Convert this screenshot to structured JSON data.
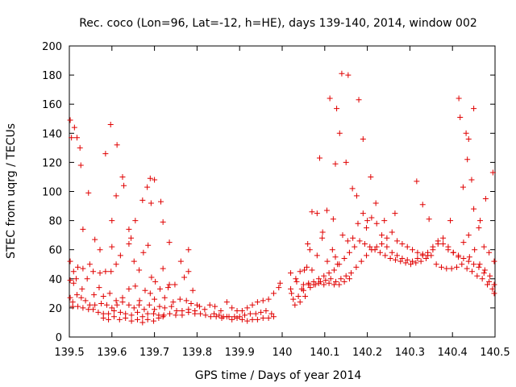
{
  "chart_data": {
    "type": "scatter",
    "title": "Rec. coco (Lon=96, Lat=-12, h=HE), days 139-140, 2014, window 002",
    "xlabel": "GPS time / Days of year 2014",
    "ylabel": "STEC from uqrg / TECUs",
    "xlim": [
      139.5,
      140.5
    ],
    "ylim": [
      0,
      200
    ],
    "x_ticks": [
      139.5,
      139.6,
      139.7,
      139.8,
      139.9,
      140.0,
      140.1,
      140.2,
      140.3,
      140.4,
      140.5
    ],
    "x_tick_labels": [
      "139.5",
      "139.6",
      "139.7",
      "139.8",
      "139.9",
      "140",
      "140.1",
      "140.2",
      "140.3",
      "140.4",
      "140.5"
    ],
    "y_ticks": [
      0,
      20,
      40,
      60,
      80,
      100,
      120,
      140,
      160,
      180,
      200
    ],
    "y_tick_labels": [
      "0",
      "20",
      "40",
      "60",
      "80",
      "100",
      "120",
      "140",
      "160",
      "180",
      "200"
    ],
    "grid": false,
    "marker": "plus",
    "color": "#e00000",
    "points": [
      [
        139.502,
        149
      ],
      [
        139.505,
        137
      ],
      [
        139.512,
        144
      ],
      [
        139.518,
        137
      ],
      [
        139.525,
        130
      ],
      [
        139.527,
        118
      ],
      [
        139.532,
        74
      ],
      [
        139.545,
        99
      ],
      [
        139.56,
        67
      ],
      [
        139.572,
        60
      ],
      [
        139.585,
        126
      ],
      [
        139.597,
        146
      ],
      [
        139.6,
        80
      ],
      [
        139.61,
        97
      ],
      [
        139.612,
        132
      ],
      [
        139.625,
        110
      ],
      [
        139.628,
        104
      ],
      [
        139.64,
        74
      ],
      [
        139.645,
        68
      ],
      [
        139.655,
        80
      ],
      [
        139.672,
        94
      ],
      [
        139.683,
        103
      ],
      [
        139.69,
        109
      ],
      [
        139.692,
        92
      ],
      [
        139.7,
        108
      ],
      [
        139.715,
        93
      ],
      [
        139.72,
        79
      ],
      [
        139.735,
        65
      ],
      [
        139.78,
        60
      ],
      [
        139.6,
        62
      ],
      [
        139.502,
        52
      ],
      [
        139.51,
        45
      ],
      [
        139.52,
        48
      ],
      [
        139.532,
        47
      ],
      [
        139.548,
        50
      ],
      [
        139.556,
        45
      ],
      [
        139.572,
        44
      ],
      [
        139.585,
        45
      ],
      [
        139.598,
        45
      ],
      [
        139.61,
        50
      ],
      [
        139.62,
        56
      ],
      [
        139.64,
        64
      ],
      [
        139.652,
        52
      ],
      [
        139.664,
        46
      ],
      [
        139.674,
        58
      ],
      [
        139.685,
        63
      ],
      [
        139.693,
        41
      ],
      [
        139.702,
        38
      ],
      [
        139.72,
        47
      ],
      [
        139.735,
        36
      ],
      [
        139.748,
        36
      ],
      [
        139.762,
        52
      ],
      [
        139.77,
        41
      ],
      [
        139.78,
        45
      ],
      [
        139.79,
        32
      ],
      [
        139.502,
        39
      ],
      [
        139.51,
        37
      ],
      [
        139.516,
        40
      ],
      [
        139.53,
        33
      ],
      [
        139.542,
        40
      ],
      [
        139.558,
        29
      ],
      [
        139.57,
        34
      ],
      [
        139.58,
        28
      ],
      [
        139.595,
        30
      ],
      [
        139.61,
        25
      ],
      [
        139.625,
        27
      ],
      [
        139.64,
        33
      ],
      [
        139.655,
        35
      ],
      [
        139.665,
        25
      ],
      [
        139.678,
        32
      ],
      [
        139.69,
        30
      ],
      [
        139.7,
        26
      ],
      [
        139.713,
        33
      ],
      [
        139.724,
        27
      ],
      [
        139.732,
        34
      ],
      [
        139.744,
        24
      ],
      [
        139.76,
        26
      ],
      [
        139.775,
        25
      ],
      [
        139.786,
        23
      ],
      [
        139.8,
        22
      ],
      [
        139.502,
        27
      ],
      [
        139.508,
        24
      ],
      [
        139.518,
        29
      ],
      [
        139.528,
        27
      ],
      [
        139.538,
        25
      ],
      [
        139.548,
        22
      ],
      [
        139.56,
        22
      ],
      [
        139.575,
        23
      ],
      [
        139.588,
        22
      ],
      [
        139.6,
        20
      ],
      [
        139.612,
        22
      ],
      [
        139.625,
        24
      ],
      [
        139.64,
        22
      ],
      [
        139.652,
        20
      ],
      [
        139.664,
        22
      ],
      [
        139.676,
        19
      ],
      [
        139.688,
        22
      ],
      [
        139.7,
        19
      ],
      [
        139.712,
        21
      ],
      [
        139.724,
        20
      ],
      [
        139.74,
        21
      ],
      [
        139.752,
        18
      ],
      [
        139.765,
        18
      ],
      [
        139.78,
        19
      ],
      [
        139.795,
        18
      ],
      [
        139.508,
        21
      ],
      [
        139.52,
        21
      ],
      [
        139.532,
        20
      ],
      [
        139.545,
        19
      ],
      [
        139.556,
        19
      ],
      [
        139.568,
        17
      ],
      [
        139.58,
        16
      ],
      [
        139.592,
        16
      ],
      [
        139.605,
        18
      ],
      [
        139.62,
        17
      ],
      [
        139.632,
        16
      ],
      [
        139.646,
        15
      ],
      [
        139.66,
        17
      ],
      [
        139.672,
        14
      ],
      [
        139.684,
        16
      ],
      [
        139.698,
        16
      ],
      [
        139.71,
        15
      ],
      [
        139.722,
        15
      ],
      [
        139.736,
        16
      ],
      [
        139.75,
        15
      ],
      [
        139.765,
        15
      ],
      [
        139.78,
        17
      ],
      [
        139.795,
        16
      ],
      [
        139.58,
        13
      ],
      [
        139.592,
        12
      ],
      [
        139.605,
        14
      ],
      [
        139.618,
        12
      ],
      [
        139.632,
        13
      ],
      [
        139.646,
        11
      ],
      [
        139.66,
        12
      ],
      [
        139.672,
        10
      ],
      [
        139.684,
        12
      ],
      [
        139.698,
        11
      ],
      [
        139.71,
        13
      ],
      [
        139.72,
        14
      ],
      [
        139.806,
        21
      ],
      [
        139.818,
        19
      ],
      [
        139.83,
        22
      ],
      [
        139.842,
        21
      ],
      [
        139.856,
        18
      ],
      [
        139.87,
        24
      ],
      [
        139.84,
        16
      ],
      [
        139.852,
        15
      ],
      [
        139.862,
        14
      ],
      [
        139.875,
        14
      ],
      [
        139.888,
        14
      ],
      [
        139.9,
        14
      ],
      [
        139.912,
        15
      ],
      [
        139.925,
        16
      ],
      [
        139.938,
        16
      ],
      [
        139.95,
        17
      ],
      [
        139.962,
        18
      ],
      [
        139.975,
        16
      ],
      [
        139.808,
        16
      ],
      [
        139.82,
        15
      ],
      [
        139.832,
        14
      ],
      [
        139.845,
        14
      ],
      [
        139.858,
        13
      ],
      [
        139.87,
        14
      ],
      [
        139.882,
        12
      ],
      [
        139.894,
        13
      ],
      [
        139.906,
        12
      ],
      [
        139.918,
        11
      ],
      [
        139.93,
        12
      ],
      [
        139.942,
        12
      ],
      [
        139.955,
        13
      ],
      [
        139.968,
        13
      ],
      [
        139.98,
        14
      ],
      [
        139.882,
        20
      ],
      [
        139.894,
        18
      ],
      [
        139.906,
        18
      ],
      [
        139.918,
        20
      ],
      [
        139.93,
        22
      ],
      [
        139.942,
        24
      ],
      [
        139.955,
        25
      ],
      [
        139.968,
        26
      ],
      [
        139.98,
        30
      ],
      [
        139.992,
        34
      ],
      [
        139.995,
        37
      ],
      [
        140.02,
        33
      ],
      [
        140.02,
        44
      ],
      [
        140.032,
        40
      ],
      [
        140.042,
        45
      ],
      [
        140.052,
        46
      ],
      [
        140.06,
        64
      ],
      [
        140.065,
        60
      ],
      [
        140.07,
        86
      ],
      [
        140.082,
        85
      ],
      [
        140.088,
        123
      ],
      [
        140.095,
        72
      ],
      [
        140.105,
        87
      ],
      [
        140.112,
        164
      ],
      [
        140.12,
        81
      ],
      [
        140.125,
        55
      ],
      [
        140.125,
        119
      ],
      [
        140.128,
        157
      ],
      [
        140.135,
        140
      ],
      [
        140.14,
        181
      ],
      [
        140.15,
        120
      ],
      [
        140.155,
        180
      ],
      [
        140.165,
        102
      ],
      [
        140.175,
        97
      ],
      [
        140.18,
        163
      ],
      [
        140.19,
        136
      ],
      [
        140.2,
        80
      ],
      [
        140.208,
        110
      ],
      [
        140.22,
        92
      ],
      [
        140.24,
        80
      ],
      [
        140.265,
        85
      ],
      [
        140.316,
        107
      ],
      [
        140.33,
        91
      ],
      [
        140.345,
        81
      ],
      [
        140.395,
        80
      ],
      [
        140.415,
        164
      ],
      [
        140.418,
        151
      ],
      [
        140.425,
        103
      ],
      [
        140.432,
        140
      ],
      [
        140.435,
        122
      ],
      [
        140.438,
        136
      ],
      [
        140.445,
        108
      ],
      [
        140.45,
        157
      ],
      [
        140.465,
        80
      ],
      [
        140.478,
        95
      ],
      [
        140.495,
        113
      ],
      [
        140.022,
        30
      ],
      [
        140.034,
        38
      ],
      [
        140.046,
        33
      ],
      [
        140.058,
        48
      ],
      [
        140.07,
        46
      ],
      [
        140.082,
        56
      ],
      [
        140.094,
        68
      ],
      [
        140.106,
        52
      ],
      [
        140.118,
        60
      ],
      [
        140.13,
        50
      ],
      [
        140.142,
        70
      ],
      [
        140.154,
        66
      ],
      [
        140.166,
        68
      ],
      [
        140.178,
        78
      ],
      [
        140.19,
        85
      ],
      [
        140.198,
        75
      ],
      [
        140.21,
        82
      ],
      [
        140.222,
        78
      ],
      [
        140.234,
        70
      ],
      [
        140.246,
        68
      ],
      [
        140.258,
        72
      ],
      [
        140.27,
        66
      ],
      [
        140.282,
        64
      ],
      [
        140.294,
        62
      ],
      [
        140.306,
        60
      ],
      [
        140.318,
        58
      ],
      [
        140.33,
        57
      ],
      [
        140.342,
        56
      ],
      [
        140.354,
        60
      ],
      [
        140.366,
        64
      ],
      [
        140.378,
        68
      ],
      [
        140.39,
        62
      ],
      [
        140.402,
        58
      ],
      [
        140.414,
        55
      ],
      [
        140.426,
        65
      ],
      [
        140.438,
        70
      ],
      [
        140.45,
        88
      ],
      [
        140.462,
        75
      ],
      [
        140.474,
        62
      ],
      [
        140.486,
        58
      ],
      [
        140.498,
        52
      ],
      [
        140.026,
        26
      ],
      [
        140.038,
        28
      ],
      [
        140.05,
        32
      ],
      [
        140.062,
        36
      ],
      [
        140.074,
        38
      ],
      [
        140.086,
        40
      ],
      [
        140.098,
        42
      ],
      [
        140.11,
        44
      ],
      [
        140.122,
        46
      ],
      [
        140.134,
        50
      ],
      [
        140.146,
        54
      ],
      [
        140.158,
        58
      ],
      [
        140.17,
        62
      ],
      [
        140.182,
        66
      ],
      [
        140.194,
        64
      ],
      [
        140.206,
        62
      ],
      [
        140.218,
        60
      ],
      [
        140.23,
        58
      ],
      [
        140.242,
        56
      ],
      [
        140.254,
        54
      ],
      [
        140.266,
        53
      ],
      [
        140.278,
        52
      ],
      [
        140.29,
        51
      ],
      [
        140.302,
        50
      ],
      [
        140.314,
        51
      ],
      [
        140.326,
        52
      ],
      [
        140.338,
        54
      ],
      [
        140.35,
        56
      ],
      [
        140.362,
        50
      ],
      [
        140.374,
        48
      ],
      [
        140.386,
        47
      ],
      [
        140.398,
        47
      ],
      [
        140.41,
        48
      ],
      [
        140.422,
        50
      ],
      [
        140.434,
        47
      ],
      [
        140.446,
        45
      ],
      [
        140.458,
        42
      ],
      [
        140.47,
        40
      ],
      [
        140.482,
        36
      ],
      [
        140.494,
        33
      ],
      [
        140.03,
        22
      ],
      [
        140.042,
        24
      ],
      [
        140.054,
        28
      ],
      [
        140.066,
        34
      ],
      [
        140.078,
        36
      ],
      [
        140.09,
        38
      ],
      [
        140.102,
        39
      ],
      [
        140.114,
        40
      ],
      [
        140.126,
        38
      ],
      [
        140.138,
        40
      ],
      [
        140.15,
        42
      ],
      [
        140.162,
        44
      ],
      [
        140.174,
        48
      ],
      [
        140.186,
        52
      ],
      [
        140.198,
        56
      ],
      [
        140.21,
        60
      ],
      [
        140.222,
        62
      ],
      [
        140.234,
        64
      ],
      [
        140.246,
        62
      ],
      [
        140.258,
        58
      ],
      [
        140.27,
        56
      ],
      [
        140.282,
        54
      ],
      [
        140.294,
        53
      ],
      [
        140.306,
        52
      ],
      [
        140.318,
        54
      ],
      [
        140.33,
        56
      ],
      [
        140.342,
        58
      ],
      [
        140.354,
        62
      ],
      [
        140.366,
        66
      ],
      [
        140.378,
        64
      ],
      [
        140.39,
        60
      ],
      [
        140.402,
        58
      ],
      [
        140.414,
        56
      ],
      [
        140.426,
        54
      ],
      [
        140.438,
        52
      ],
      [
        140.45,
        50
      ],
      [
        140.462,
        48
      ],
      [
        140.474,
        44
      ],
      [
        140.486,
        38
      ],
      [
        140.498,
        30
      ],
      [
        140.05,
        36
      ],
      [
        140.062,
        37
      ],
      [
        140.074,
        36
      ],
      [
        140.086,
        37
      ],
      [
        140.098,
        36
      ],
      [
        140.11,
        37
      ],
      [
        140.122,
        36
      ],
      [
        140.134,
        36
      ],
      [
        140.146,
        38
      ],
      [
        140.158,
        40
      ],
      [
        140.44,
        55
      ],
      [
        140.452,
        60
      ],
      [
        140.464,
        50
      ],
      [
        140.476,
        46
      ],
      [
        140.488,
        42
      ],
      [
        140.498,
        36
      ]
    ]
  }
}
